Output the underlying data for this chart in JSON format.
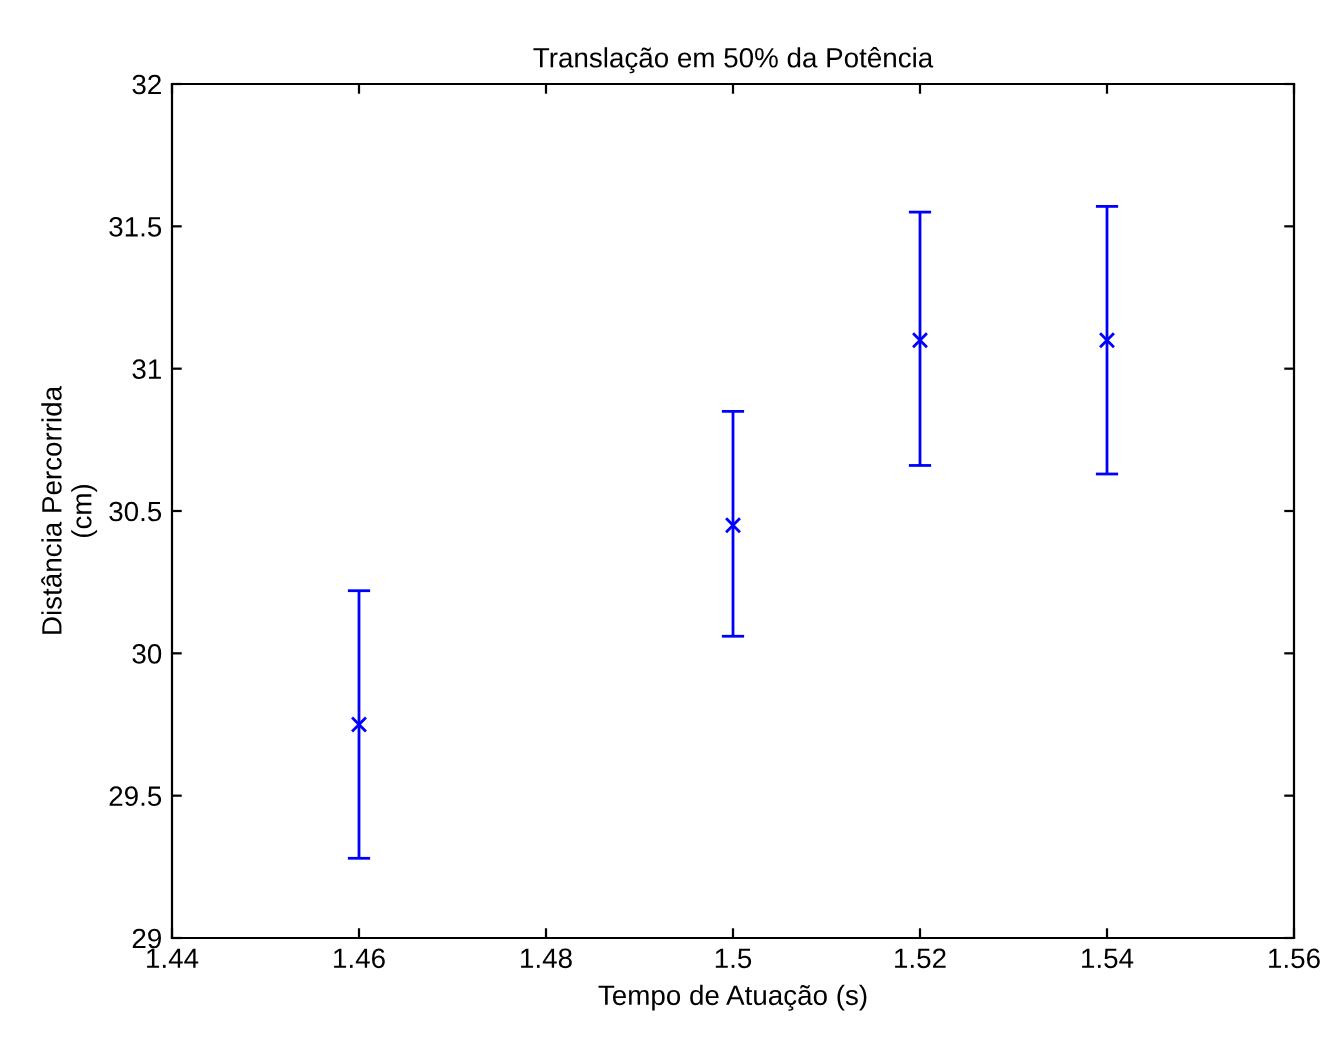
{
  "chart_data": {
    "type": "scatter",
    "title": "Translação em 50% da Potência",
    "xlabel": "Tempo de Atuação (s)",
    "ylabel": "Distância Percorrida\n(cm)",
    "x": [
      1.46,
      1.5,
      1.52,
      1.54
    ],
    "values": [
      29.75,
      30.45,
      31.1,
      31.1
    ],
    "errors": [
      [
        29.28,
        30.22
      ],
      [
        30.06,
        30.85
      ],
      [
        30.66,
        31.55
      ],
      [
        30.63,
        31.57
      ]
    ],
    "color": "#0000ff",
    "marker": "cross",
    "grid": false,
    "legend": false,
    "xlim": [
      1.44,
      1.56
    ],
    "xticks": [
      1.44,
      1.46,
      1.48,
      1.5,
      1.52,
      1.54,
      1.56
    ],
    "ylim": [
      29,
      32
    ],
    "yticks": [
      29,
      29.5,
      30,
      30.5,
      31,
      31.5,
      32
    ]
  }
}
